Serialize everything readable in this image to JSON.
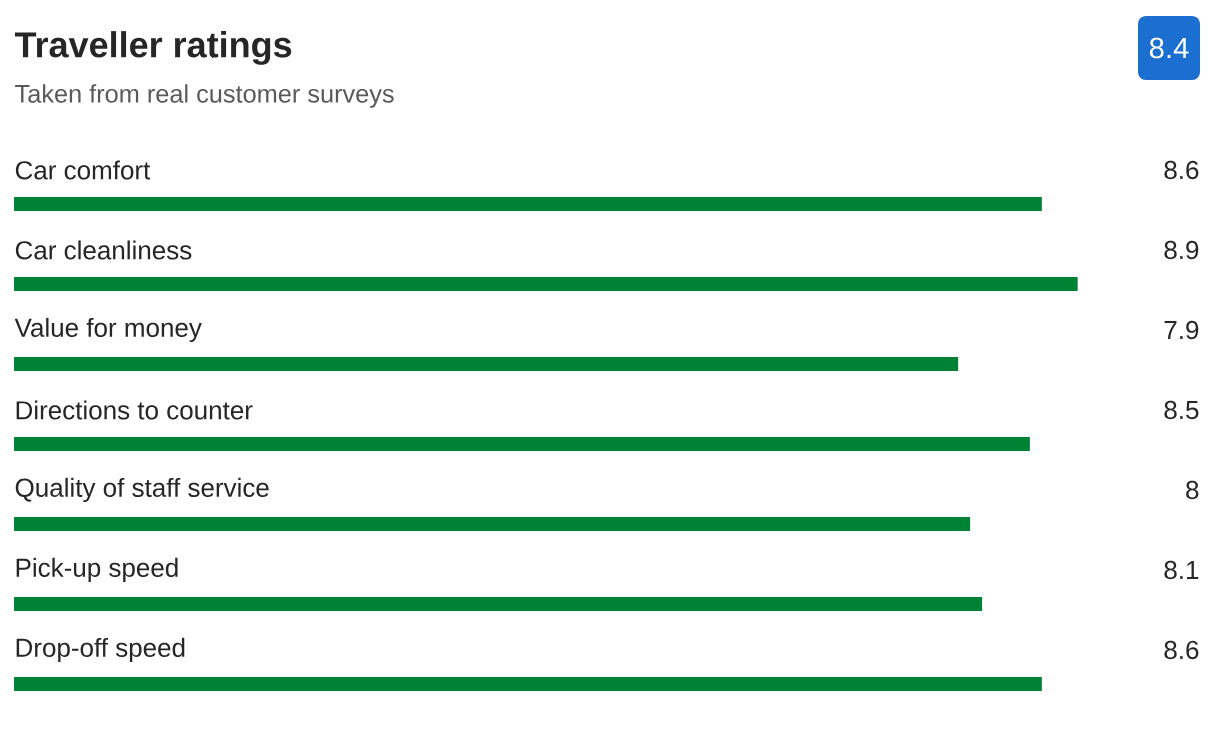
{
  "chart_data": {
    "type": "bar",
    "orientation": "horizontal",
    "title": "Traveller ratings",
    "subtitle": "Taken from real customer surveys",
    "categories": [
      "Car comfort",
      "Car cleanliness",
      "Value for money",
      "Directions to counter",
      "Quality of staff service",
      "Pick-up speed",
      "Drop-off speed"
    ],
    "values": [
      8.6,
      8.9,
      7.9,
      8.5,
      8,
      8.1,
      8.6
    ],
    "color": "#008234",
    "data_labels": true,
    "annotations": [
      "8.4"
    ]
  }
}
